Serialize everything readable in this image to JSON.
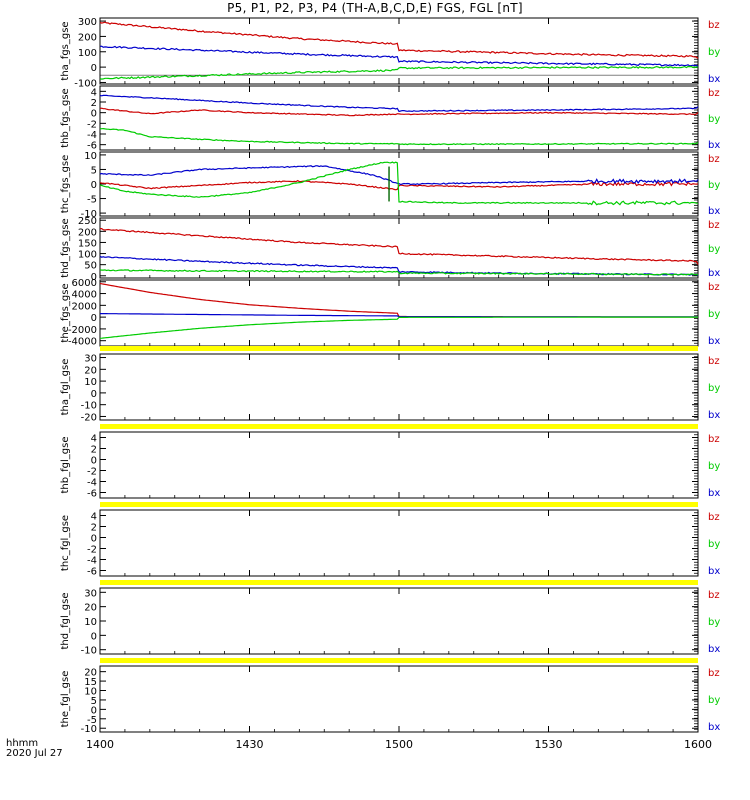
{
  "title": "P5, P1, P2, P3, P4 (TH-A,B,C,D,E) FGS, FGL [nT]",
  "time_axis": {
    "label_line1": "hhmm",
    "label_line2": "2020 Jul 27"
  },
  "colors": {
    "bx": "#0000cc",
    "by": "#00cc00",
    "bz": "#cc0000",
    "no_data": "#ffff00"
  },
  "chart_data": [
    {
      "type": "line",
      "ylabel": "tha_fgs_gse",
      "ylim": [
        -110,
        320
      ],
      "yticks": [
        300,
        200,
        100,
        0,
        -100
      ],
      "x": [
        1400,
        1600
      ],
      "legend": [
        "bz",
        "by",
        "bx"
      ],
      "series": [
        {
          "name": "bz",
          "keyframes": [
            [
              1400,
              290
            ],
            [
              1420,
              235
            ],
            [
              1440,
              185
            ],
            [
              1460,
              150
            ],
            [
              1480,
              125
            ],
            [
              1500,
              110
            ],
            [
              1520,
              95
            ],
            [
              1540,
              80
            ],
            [
              1560,
              70
            ],
            [
              1580,
              60
            ],
            [
              1600,
              55
            ]
          ]
        },
        {
          "name": "bx",
          "keyframes": [
            [
              1400,
              135
            ],
            [
              1420,
              110
            ],
            [
              1440,
              85
            ],
            [
              1460,
              65
            ],
            [
              1480,
              50
            ],
            [
              1500,
              38
            ],
            [
              1520,
              28
            ],
            [
              1540,
              20
            ],
            [
              1560,
              12
            ],
            [
              1580,
              6
            ],
            [
              1600,
              2
            ]
          ]
        },
        {
          "name": "by",
          "keyframes": [
            [
              1400,
              -75
            ],
            [
              1420,
              -55
            ],
            [
              1440,
              -35
            ],
            [
              1460,
              -20
            ],
            [
              1480,
              -10
            ],
            [
              1500,
              -6
            ],
            [
              1520,
              -4
            ],
            [
              1540,
              -2
            ],
            [
              1560,
              -1
            ],
            [
              1580,
              0
            ],
            [
              1600,
              0
            ]
          ]
        }
      ]
    },
    {
      "type": "line",
      "ylabel": "thb_fgs_gse",
      "ylim": [
        -7,
        5
      ],
      "yticks": [
        4,
        2,
        0,
        -2,
        -4,
        -6
      ],
      "x": [
        1400,
        1600
      ],
      "legend": [
        "bz",
        "by",
        "bx"
      ],
      "series": [
        {
          "name": "bz",
          "keyframes": [
            [
              1400,
              0.8
            ],
            [
              1410,
              -0.2
            ],
            [
              1420,
              0.5
            ],
            [
              1430,
              0
            ],
            [
              1450,
              -0.5
            ],
            [
              1470,
              0
            ],
            [
              1500,
              -0.3
            ],
            [
              1530,
              0
            ],
            [
              1560,
              -0.3
            ],
            [
              1600,
              0
            ]
          ]
        },
        {
          "name": "bx",
          "keyframes": [
            [
              1400,
              3.2
            ],
            [
              1410,
              2.8
            ],
            [
              1420,
              2.3
            ],
            [
              1430,
              1.8
            ],
            [
              1450,
              1.0
            ],
            [
              1470,
              0.5
            ],
            [
              1500,
              0.3
            ],
            [
              1530,
              0.5
            ],
            [
              1560,
              0.8
            ],
            [
              1600,
              1.2
            ]
          ]
        },
        {
          "name": "by",
          "keyframes": [
            [
              1400,
              -3.0
            ],
            [
              1405,
              -3.3
            ],
            [
              1410,
              -4.5
            ],
            [
              1420,
              -5.0
            ],
            [
              1430,
              -5.4
            ],
            [
              1450,
              -5.8
            ],
            [
              1480,
              -5.9
            ],
            [
              1520,
              -5.9
            ],
            [
              1560,
              -5.8
            ],
            [
              1600,
              -5.7
            ]
          ]
        }
      ]
    },
    {
      "type": "line",
      "ylabel": "thc_fgs_gse",
      "ylim": [
        -11,
        11
      ],
      "yticks": [
        10,
        5,
        0,
        -5,
        -10
      ],
      "x": [
        1400,
        1600
      ],
      "legend": [
        "bz",
        "by",
        "bx"
      ],
      "series": [
        {
          "name": "bz",
          "keyframes": [
            [
              1400,
              0.5
            ],
            [
              1410,
              -1.5
            ],
            [
              1420,
              -0.5
            ],
            [
              1430,
              0.5
            ],
            [
              1440,
              1
            ],
            [
              1450,
              0
            ],
            [
              1460,
              -2
            ],
            [
              1470,
              -3
            ],
            [
              1480,
              -1
            ],
            [
              1490,
              0
            ],
            [
              1500,
              -0.5
            ],
            [
              1520,
              -1
            ],
            [
              1540,
              0
            ],
            [
              1560,
              0
            ],
            [
              1600,
              0
            ]
          ]
        },
        {
          "name": "bx",
          "keyframes": [
            [
              1400,
              3.5
            ],
            [
              1410,
              3
            ],
            [
              1420,
              5
            ],
            [
              1430,
              5.5
            ],
            [
              1440,
              6
            ],
            [
              1445,
              6.2
            ],
            [
              1455,
              3
            ],
            [
              1465,
              -3
            ],
            [
              1470,
              -6.5
            ],
            [
              1475,
              -7
            ],
            [
              1480,
              -6
            ],
            [
              1490,
              -2
            ],
            [
              1497,
              4
            ],
            [
              1499,
              0
            ],
            [
              1505,
              0
            ],
            [
              1520,
              0.5
            ],
            [
              1540,
              1
            ],
            [
              1560,
              1
            ],
            [
              1580,
              1.3
            ],
            [
              1600,
              1.5
            ]
          ]
        },
        {
          "name": "by",
          "keyframes": [
            [
              1400,
              -0.5
            ],
            [
              1405,
              -2.5
            ],
            [
              1410,
              -3.5
            ],
            [
              1420,
              -4.5
            ],
            [
              1430,
              -3
            ],
            [
              1440,
              0.5
            ],
            [
              1450,
              5
            ],
            [
              1457,
              7.5
            ],
            [
              1462,
              7.2
            ],
            [
              1470,
              3
            ],
            [
              1480,
              -2
            ],
            [
              1490,
              -6
            ],
            [
              1496,
              -6
            ],
            [
              1497,
              5.5
            ],
            [
              1498,
              -6
            ],
            [
              1500,
              -6
            ],
            [
              1510,
              -6.5
            ],
            [
              1530,
              -6.5
            ],
            [
              1560,
              -6.5
            ],
            [
              1600,
              -6.5
            ]
          ]
        }
      ]
    },
    {
      "type": "line",
      "ylabel": "thd_fgs_gse",
      "ylim": [
        -10,
        260
      ],
      "yticks": [
        250,
        200,
        150,
        100,
        50,
        0
      ],
      "x": [
        1400,
        1600
      ],
      "legend": [
        "bz",
        "by",
        "bx"
      ],
      "series": [
        {
          "name": "bz",
          "keyframes": [
            [
              1400,
              210
            ],
            [
              1420,
              180
            ],
            [
              1440,
              150
            ],
            [
              1460,
              130
            ],
            [
              1480,
              115
            ],
            [
              1500,
              100
            ],
            [
              1520,
              88
            ],
            [
              1540,
              76
            ],
            [
              1560,
              66
            ],
            [
              1580,
              58
            ],
            [
              1600,
              52
            ]
          ]
        },
        {
          "name": "bx",
          "keyframes": [
            [
              1400,
              85
            ],
            [
              1420,
              65
            ],
            [
              1440,
              48
            ],
            [
              1460,
              35
            ],
            [
              1480,
              25
            ],
            [
              1500,
              18
            ],
            [
              1520,
              12
            ],
            [
              1540,
              8
            ],
            [
              1560,
              5
            ],
            [
              1580,
              3
            ],
            [
              1600,
              2
            ]
          ]
        },
        {
          "name": "by",
          "keyframes": [
            [
              1400,
              25
            ],
            [
              1420,
              22
            ],
            [
              1440,
              20
            ],
            [
              1460,
              18
            ],
            [
              1480,
              15
            ],
            [
              1500,
              12
            ],
            [
              1520,
              10
            ],
            [
              1540,
              8
            ],
            [
              1560,
              6
            ],
            [
              1580,
              4
            ],
            [
              1600,
              3
            ]
          ]
        }
      ]
    },
    {
      "type": "line",
      "ylabel": "the_fgs_gse",
      "ylim": [
        -4900,
        6300
      ],
      "yticks": [
        6000,
        4000,
        2000,
        0,
        -2000,
        -4000
      ],
      "x": [
        1400,
        1600
      ],
      "legend": [
        "bz",
        "by",
        "bx"
      ],
      "series": [
        {
          "name": "bz",
          "keyframes": [
            [
              1400,
              5700
            ],
            [
              1410,
              4200
            ],
            [
              1420,
              3000
            ],
            [
              1430,
              2100
            ],
            [
              1440,
              1500
            ],
            [
              1450,
              1000
            ],
            [
              1460,
              650
            ],
            [
              1470,
              400
            ],
            [
              1480,
              250
            ],
            [
              1500,
              100
            ],
            [
              1540,
              30
            ],
            [
              1600,
              0
            ]
          ]
        },
        {
          "name": "bx",
          "keyframes": [
            [
              1400,
              600
            ],
            [
              1420,
              450
            ],
            [
              1440,
              300
            ],
            [
              1460,
              200
            ],
            [
              1480,
              120
            ],
            [
              1500,
              80
            ],
            [
              1540,
              40
            ],
            [
              1600,
              10
            ]
          ]
        },
        {
          "name": "by",
          "keyframes": [
            [
              1400,
              -3600
            ],
            [
              1410,
              -2700
            ],
            [
              1420,
              -1900
            ],
            [
              1430,
              -1300
            ],
            [
              1440,
              -850
            ],
            [
              1450,
              -550
            ],
            [
              1460,
              -350
            ],
            [
              1470,
              -200
            ],
            [
              1480,
              -100
            ],
            [
              1500,
              -40
            ],
            [
              1540,
              0
            ],
            [
              1600,
              0
            ]
          ]
        }
      ]
    },
    {
      "type": "line",
      "ylabel": "tha_fgl_gse",
      "ylim": [
        -23,
        33
      ],
      "no_data": true,
      "yticks": [
        30,
        20,
        10,
        0,
        -10,
        -20
      ],
      "x": [
        1400,
        1600
      ],
      "legend": [
        "bz",
        "by",
        "bx"
      ],
      "series": []
    },
    {
      "type": "line",
      "ylabel": "thb_fgl_gse",
      "ylim": [
        -7,
        5
      ],
      "no_data": true,
      "yticks": [
        4,
        2,
        0,
        -2,
        -4,
        -6
      ],
      "x": [
        1400,
        1600
      ],
      "legend": [
        "bz",
        "by",
        "bx"
      ],
      "series": []
    },
    {
      "type": "line",
      "ylabel": "thc_fgl_gse",
      "ylim": [
        -7,
        5
      ],
      "no_data": true,
      "yticks": [
        4,
        2,
        0,
        -2,
        -4,
        -6
      ],
      "x": [
        1400,
        1600
      ],
      "legend": [
        "bz",
        "by",
        "bx"
      ],
      "series": []
    },
    {
      "type": "line",
      "ylabel": "thd_fgl_gse",
      "ylim": [
        -13,
        33
      ],
      "no_data": true,
      "yticks": [
        30,
        20,
        10,
        0,
        -10
      ],
      "x": [
        1400,
        1600
      ],
      "legend": [
        "bz",
        "by",
        "bx"
      ],
      "series": []
    },
    {
      "type": "line",
      "ylabel": "the_fgl_gse",
      "ylim": [
        -12,
        23
      ],
      "no_data": true,
      "yticks": [
        20,
        15,
        10,
        5,
        0,
        -5,
        -10
      ],
      "x": [
        1400,
        1600
      ],
      "legend": [
        "bz",
        "by",
        "bx"
      ],
      "series": []
    }
  ],
  "xticks": [
    {
      "value": 1400,
      "label": "1400"
    },
    {
      "value": 1430,
      "label": "1430"
    },
    {
      "value": 1500,
      "label": "1500"
    },
    {
      "value": 1530,
      "label": "1530"
    },
    {
      "value": 1600,
      "label": "1600"
    }
  ],
  "xrange_minutes": [
    0,
    120
  ]
}
